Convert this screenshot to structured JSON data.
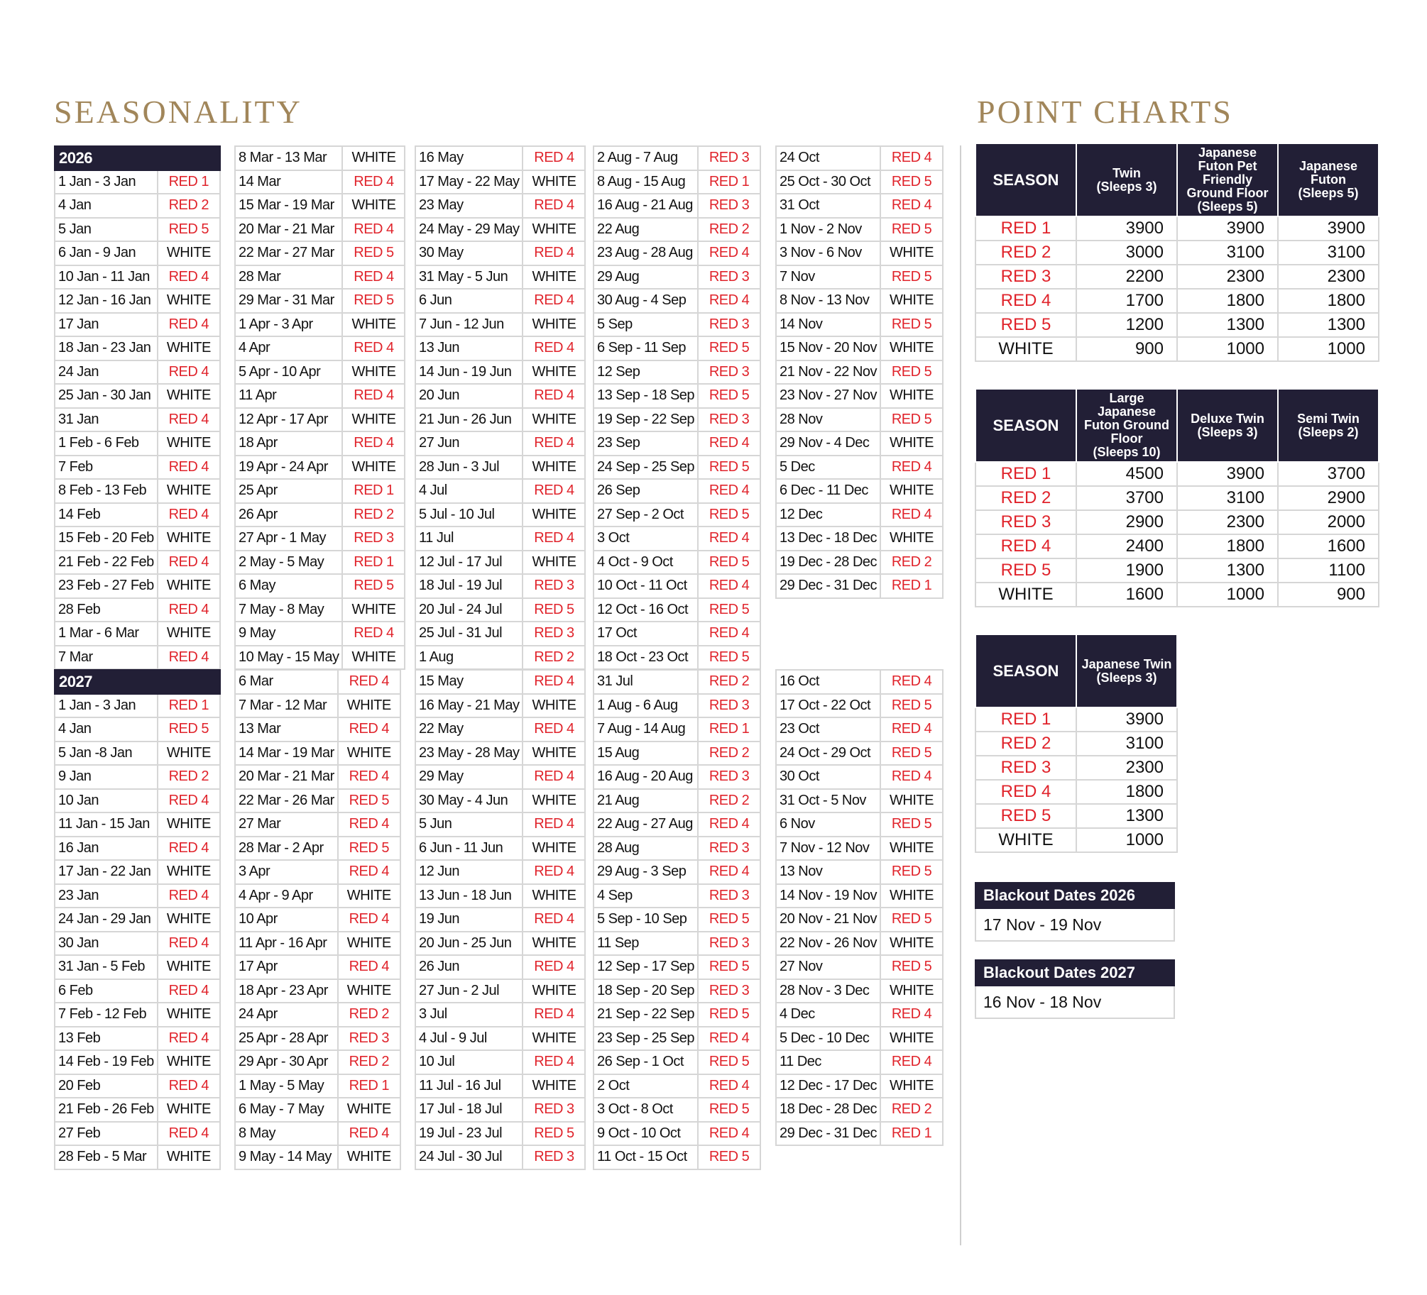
{
  "seasonality_title": "SEASONALITY",
  "point_charts_title": "POINT CHARTS",
  "colors": {
    "header_bg": "#221f36",
    "red_text": "#e0232b",
    "title_gold": "#a1865a"
  },
  "seasonality": [
    {
      "year": "2026",
      "columns": [
        [
          [
            "1 Jan - 3 Jan",
            "RED 1"
          ],
          [
            "4 Jan",
            "RED 2"
          ],
          [
            "5 Jan",
            "RED 5"
          ],
          [
            "6 Jan - 9 Jan",
            "WHITE"
          ],
          [
            "10 Jan - 11 Jan",
            "RED 4"
          ],
          [
            "12 Jan - 16 Jan",
            "WHITE"
          ],
          [
            "17 Jan",
            "RED 4"
          ],
          [
            "18 Jan - 23 Jan",
            "WHITE"
          ],
          [
            "24 Jan",
            "RED 4"
          ],
          [
            "25 Jan - 30 Jan",
            "WHITE"
          ],
          [
            "31 Jan",
            "RED 4"
          ],
          [
            "1 Feb - 6 Feb",
            "WHITE"
          ],
          [
            "7 Feb",
            "RED 4"
          ],
          [
            "8 Feb - 13 Feb",
            "WHITE"
          ],
          [
            "14 Feb",
            "RED 4"
          ],
          [
            "15 Feb - 20 Feb",
            "WHITE"
          ],
          [
            "21 Feb - 22 Feb",
            "RED 4"
          ],
          [
            "23 Feb - 27 Feb",
            "WHITE"
          ],
          [
            "28 Feb",
            "RED 4"
          ],
          [
            "1 Mar - 6 Mar",
            "WHITE"
          ],
          [
            "7 Mar",
            "RED 4"
          ]
        ],
        [
          [
            "8 Mar - 13 Mar",
            "WHITE"
          ],
          [
            "14 Mar",
            "RED 4"
          ],
          [
            "15 Mar - 19 Mar",
            "WHITE"
          ],
          [
            "20 Mar - 21 Mar",
            "RED 4"
          ],
          [
            "22 Mar - 27 Mar",
            "RED 5"
          ],
          [
            "28 Mar",
            "RED 4"
          ],
          [
            "29 Mar - 31 Mar",
            "RED 5"
          ],
          [
            "1 Apr - 3 Apr",
            "WHITE"
          ],
          [
            "4 Apr",
            "RED 4"
          ],
          [
            "5 Apr - 10 Apr",
            "WHITE"
          ],
          [
            "11 Apr",
            "RED 4"
          ],
          [
            "12 Apr - 17 Apr",
            "WHITE"
          ],
          [
            "18 Apr",
            "RED 4"
          ],
          [
            "19 Apr - 24 Apr",
            "WHITE"
          ],
          [
            "25 Apr",
            "RED 1"
          ],
          [
            "26 Apr",
            "RED 2"
          ],
          [
            "27 Apr - 1 May",
            "RED 3"
          ],
          [
            "2 May - 5 May",
            "RED 1"
          ],
          [
            "6 May",
            "RED 5"
          ],
          [
            "7 May - 8 May",
            "WHITE"
          ],
          [
            "9 May",
            "RED 4"
          ],
          [
            "10 May - 15 May",
            "WHITE"
          ]
        ],
        [
          [
            "16 May",
            "RED 4"
          ],
          [
            "17 May - 22 May",
            "WHITE"
          ],
          [
            "23 May",
            "RED 4"
          ],
          [
            "24 May - 29 May",
            "WHITE"
          ],
          [
            "30 May",
            "RED 4"
          ],
          [
            "31 May - 5 Jun",
            "WHITE"
          ],
          [
            "6 Jun",
            "RED 4"
          ],
          [
            "7 Jun - 12 Jun",
            "WHITE"
          ],
          [
            "13 Jun",
            "RED 4"
          ],
          [
            "14 Jun - 19 Jun",
            "WHITE"
          ],
          [
            "20 Jun",
            "RED 4"
          ],
          [
            "21 Jun - 26 Jun",
            "WHITE"
          ],
          [
            "27 Jun",
            "RED 4"
          ],
          [
            "28 Jun - 3 Jul",
            "WHITE"
          ],
          [
            "4 Jul",
            "RED 4"
          ],
          [
            "5 Jul - 10 Jul",
            "WHITE"
          ],
          [
            "11 Jul",
            "RED 4"
          ],
          [
            "12 Jul - 17 Jul",
            "WHITE"
          ],
          [
            "18 Jul - 19 Jul",
            "RED 3"
          ],
          [
            "20 Jul - 24 Jul",
            "RED 5"
          ],
          [
            "25 Jul - 31 Jul",
            "RED 3"
          ],
          [
            "1 Aug",
            "RED 2"
          ]
        ],
        [
          [
            "2 Aug - 7 Aug",
            "RED 3"
          ],
          [
            "8 Aug - 15 Aug",
            "RED 1"
          ],
          [
            "16 Aug - 21 Aug",
            "RED 3"
          ],
          [
            "22 Aug",
            "RED 2"
          ],
          [
            "23 Aug - 28 Aug",
            "RED 4"
          ],
          [
            "29 Aug",
            "RED 3"
          ],
          [
            "30 Aug - 4 Sep",
            "RED 4"
          ],
          [
            "5 Sep",
            "RED 3"
          ],
          [
            "6 Sep - 11 Sep",
            "RED 5"
          ],
          [
            "12 Sep",
            "RED 3"
          ],
          [
            "13 Sep - 18 Sep",
            "RED 5"
          ],
          [
            "19 Sep - 22 Sep",
            "RED 3"
          ],
          [
            "23 Sep",
            "RED 4"
          ],
          [
            "24 Sep - 25 Sep",
            "RED 5"
          ],
          [
            "26 Sep",
            "RED 4"
          ],
          [
            "27 Sep - 2 Oct",
            "RED 5"
          ],
          [
            "3 Oct",
            "RED 4"
          ],
          [
            "4 Oct - 9 Oct",
            "RED 5"
          ],
          [
            "10 Oct - 11 Oct",
            "RED 4"
          ],
          [
            "12 Oct - 16 Oct",
            "RED 5"
          ],
          [
            "17 Oct",
            "RED 4"
          ],
          [
            "18 Oct - 23 Oct",
            "RED 5"
          ]
        ],
        [
          [
            "24 Oct",
            "RED 4"
          ],
          [
            "25 Oct - 30 Oct",
            "RED 5"
          ],
          [
            "31 Oct",
            "RED 4"
          ],
          [
            "1 Nov - 2 Nov",
            "RED 5"
          ],
          [
            "3 Nov - 6 Nov",
            "WHITE"
          ],
          [
            "7 Nov",
            "RED 5"
          ],
          [
            "8 Nov - 13 Nov",
            "WHITE"
          ],
          [
            "14 Nov",
            "RED 5"
          ],
          [
            "15 Nov - 20 Nov",
            "WHITE"
          ],
          [
            "21 Nov - 22 Nov",
            "RED 5"
          ],
          [
            "23 Nov - 27 Nov",
            "WHITE"
          ],
          [
            "28 Nov",
            "RED 5"
          ],
          [
            "29 Nov - 4 Dec",
            "WHITE"
          ],
          [
            "5 Dec",
            "RED 4"
          ],
          [
            "6 Dec - 11 Dec",
            "WHITE"
          ],
          [
            "12 Dec",
            "RED 4"
          ],
          [
            "13 Dec - 18 Dec",
            "WHITE"
          ],
          [
            "19 Dec - 28 Dec",
            "RED 2"
          ],
          [
            "29 Dec - 31 Dec",
            "RED 1"
          ]
        ]
      ]
    },
    {
      "year": "2027",
      "columns": [
        [
          [
            "1 Jan - 3 Jan",
            "RED 1"
          ],
          [
            "4 Jan",
            "RED 5"
          ],
          [
            "5 Jan -8 Jan",
            "WHITE"
          ],
          [
            "9 Jan",
            "RED 2"
          ],
          [
            "10 Jan",
            "RED 4"
          ],
          [
            "11 Jan - 15 Jan",
            "WHITE"
          ],
          [
            "16 Jan",
            "RED 4"
          ],
          [
            "17 Jan - 22 Jan",
            "WHITE"
          ],
          [
            "23 Jan",
            "RED 4"
          ],
          [
            "24 Jan - 29 Jan",
            "WHITE"
          ],
          [
            "30 Jan",
            "RED 4"
          ],
          [
            "31 Jan - 5 Feb",
            "WHITE"
          ],
          [
            "6 Feb",
            "RED 4"
          ],
          [
            "7 Feb - 12 Feb",
            "WHITE"
          ],
          [
            "13 Feb",
            "RED 4"
          ],
          [
            "14 Feb - 19 Feb",
            "WHITE"
          ],
          [
            "20 Feb",
            "RED 4"
          ],
          [
            "21 Feb - 26 Feb",
            "WHITE"
          ],
          [
            "27 Feb",
            "RED 4"
          ],
          [
            "28 Feb - 5 Mar",
            "WHITE"
          ]
        ],
        [
          [
            "6 Mar",
            "RED 4"
          ],
          [
            "7 Mar - 12 Mar",
            "WHITE"
          ],
          [
            "13 Mar",
            "RED 4"
          ],
          [
            "14 Mar - 19 Mar",
            "WHITE"
          ],
          [
            "20 Mar - 21 Mar",
            "RED 4"
          ],
          [
            "22 Mar - 26 Mar",
            "RED 5"
          ],
          [
            "27 Mar",
            "RED 4"
          ],
          [
            "28 Mar - 2 Apr",
            "RED 5"
          ],
          [
            "3 Apr",
            "RED 4"
          ],
          [
            "4 Apr - 9 Apr",
            "WHITE"
          ],
          [
            "10 Apr",
            "RED 4"
          ],
          [
            "11 Apr - 16 Apr",
            "WHITE"
          ],
          [
            "17 Apr",
            "RED 4"
          ],
          [
            "18 Apr - 23 Apr",
            "WHITE"
          ],
          [
            "24 Apr",
            "RED 2"
          ],
          [
            "25 Apr - 28 Apr",
            "RED 3"
          ],
          [
            "29 Apr - 30 Apr",
            "RED 2"
          ],
          [
            "1 May - 5 May",
            "RED 1"
          ],
          [
            "6 May - 7 May",
            "WHITE"
          ],
          [
            "8 May",
            "RED 4"
          ],
          [
            "9 May - 14 May",
            "WHITE"
          ]
        ],
        [
          [
            "15 May",
            "RED 4"
          ],
          [
            "16 May - 21 May",
            "WHITE"
          ],
          [
            "22 May",
            "RED 4"
          ],
          [
            "23 May - 28 May",
            "WHITE"
          ],
          [
            "29 May",
            "RED 4"
          ],
          [
            "30 May - 4 Jun",
            "WHITE"
          ],
          [
            "5 Jun",
            "RED 4"
          ],
          [
            "6 Jun - 11 Jun",
            "WHITE"
          ],
          [
            "12 Jun",
            "RED 4"
          ],
          [
            "13 Jun - 18 Jun",
            "WHITE"
          ],
          [
            "19 Jun",
            "RED 4"
          ],
          [
            "20 Jun - 25 Jun",
            "WHITE"
          ],
          [
            "26 Jun",
            "RED 4"
          ],
          [
            "27 Jun - 2 Jul",
            "WHITE"
          ],
          [
            "3 Jul",
            "RED 4"
          ],
          [
            "4 Jul - 9 Jul",
            "WHITE"
          ],
          [
            "10 Jul",
            "RED 4"
          ],
          [
            "11 Jul - 16 Jul",
            "WHITE"
          ],
          [
            "17 Jul - 18 Jul",
            "RED 3"
          ],
          [
            "19 Jul - 23 Jul",
            "RED 5"
          ],
          [
            "24 Jul - 30 Jul",
            "RED 3"
          ]
        ],
        [
          [
            "31 Jul",
            "RED 2"
          ],
          [
            "1 Aug - 6 Aug",
            "RED 3"
          ],
          [
            "7 Aug - 14 Aug",
            "RED 1"
          ],
          [
            "15 Aug",
            "RED 2"
          ],
          [
            "16 Aug - 20 Aug",
            "RED 3"
          ],
          [
            "21 Aug",
            "RED 2"
          ],
          [
            "22 Aug - 27 Aug",
            "RED 4"
          ],
          [
            "28 Aug",
            "RED 3"
          ],
          [
            "29 Aug - 3 Sep",
            "RED 4"
          ],
          [
            "4 Sep",
            "RED 3"
          ],
          [
            "5 Sep - 10 Sep",
            "RED 5"
          ],
          [
            "11 Sep",
            "RED 3"
          ],
          [
            "12 Sep - 17 Sep",
            "RED 5"
          ],
          [
            "18 Sep - 20 Sep",
            "RED 3"
          ],
          [
            "21 Sep - 22 Sep",
            "RED 5"
          ],
          [
            "23 Sep - 25 Sep",
            "RED 4"
          ],
          [
            "26 Sep - 1 Oct",
            "RED 5"
          ],
          [
            "2 Oct",
            "RED 4"
          ],
          [
            "3 Oct - 8 Oct",
            "RED 5"
          ],
          [
            "9 Oct - 10 Oct",
            "RED 4"
          ],
          [
            "11 Oct - 15 Oct",
            "RED 5"
          ]
        ],
        [
          [
            "16 Oct",
            "RED 4"
          ],
          [
            "17 Oct - 22 Oct",
            "RED 5"
          ],
          [
            "23 Oct",
            "RED 4"
          ],
          [
            "24 Oct - 29 Oct",
            "RED 5"
          ],
          [
            "30 Oct",
            "RED 4"
          ],
          [
            "31 Oct - 5 Nov",
            "WHITE"
          ],
          [
            "6 Nov",
            "RED 5"
          ],
          [
            "7 Nov - 12 Nov",
            "WHITE"
          ],
          [
            "13 Nov",
            "RED 5"
          ],
          [
            "14 Nov - 19 Nov",
            "WHITE"
          ],
          [
            "20 Nov - 21 Nov",
            "RED 5"
          ],
          [
            "22 Nov - 26 Nov",
            "WHITE"
          ],
          [
            "27 Nov",
            "RED 5"
          ],
          [
            "28 Nov - 3 Dec",
            "WHITE"
          ],
          [
            "4 Dec",
            "RED 4"
          ],
          [
            "5 Dec - 10 Dec",
            "WHITE"
          ],
          [
            "11 Dec",
            "RED 4"
          ],
          [
            "12 Dec - 17 Dec",
            "WHITE"
          ],
          [
            "18 Dec - 28 Dec",
            "RED 2"
          ],
          [
            "29 Dec - 31 Dec",
            "RED 1"
          ]
        ]
      ]
    }
  ],
  "point_charts": [
    {
      "headers": [
        "SEASON",
        "Twin\n(Sleeps 3)",
        "Japanese\nFuton Pet\nFriendly\nGround Floor\n(Sleeps 5)",
        "Japanese\nFuton\n(Sleeps 5)"
      ],
      "rows": [
        [
          "RED 1",
          "3900",
          "3900",
          "3900"
        ],
        [
          "RED 2",
          "3000",
          "3100",
          "3100"
        ],
        [
          "RED 3",
          "2200",
          "2300",
          "2300"
        ],
        [
          "RED 4",
          "1700",
          "1800",
          "1800"
        ],
        [
          "RED 5",
          "1200",
          "1300",
          "1300"
        ],
        [
          "WHITE",
          "900",
          "1000",
          "1000"
        ]
      ]
    },
    {
      "headers": [
        "SEASON",
        "Large\nJapanese\nFuton Ground\nFloor\n(Sleeps 10)",
        "Deluxe Twin\n(Sleeps 3)",
        "Semi Twin\n(Sleeps 2)"
      ],
      "rows": [
        [
          "RED 1",
          "4500",
          "3900",
          "3700"
        ],
        [
          "RED 2",
          "3700",
          "3100",
          "2900"
        ],
        [
          "RED 3",
          "2900",
          "2300",
          "2000"
        ],
        [
          "RED 4",
          "2400",
          "1800",
          "1600"
        ],
        [
          "RED 5",
          "1900",
          "1300",
          "1100"
        ],
        [
          "WHITE",
          "1600",
          "1000",
          "900"
        ]
      ]
    },
    {
      "headers": [
        "SEASON",
        "Japanese Twin\n(Sleeps 3)"
      ],
      "rows": [
        [
          "RED 1",
          "3900"
        ],
        [
          "RED 2",
          "3100"
        ],
        [
          "RED 3",
          "2300"
        ],
        [
          "RED 4",
          "1800"
        ],
        [
          "RED 5",
          "1300"
        ],
        [
          "WHITE",
          "1000"
        ]
      ]
    }
  ],
  "blackouts": [
    {
      "title": "Blackout Dates 2026",
      "dates": "17 Nov - 19 Nov"
    },
    {
      "title": "Blackout Dates 2027",
      "dates": "16 Nov - 18 Nov"
    }
  ]
}
